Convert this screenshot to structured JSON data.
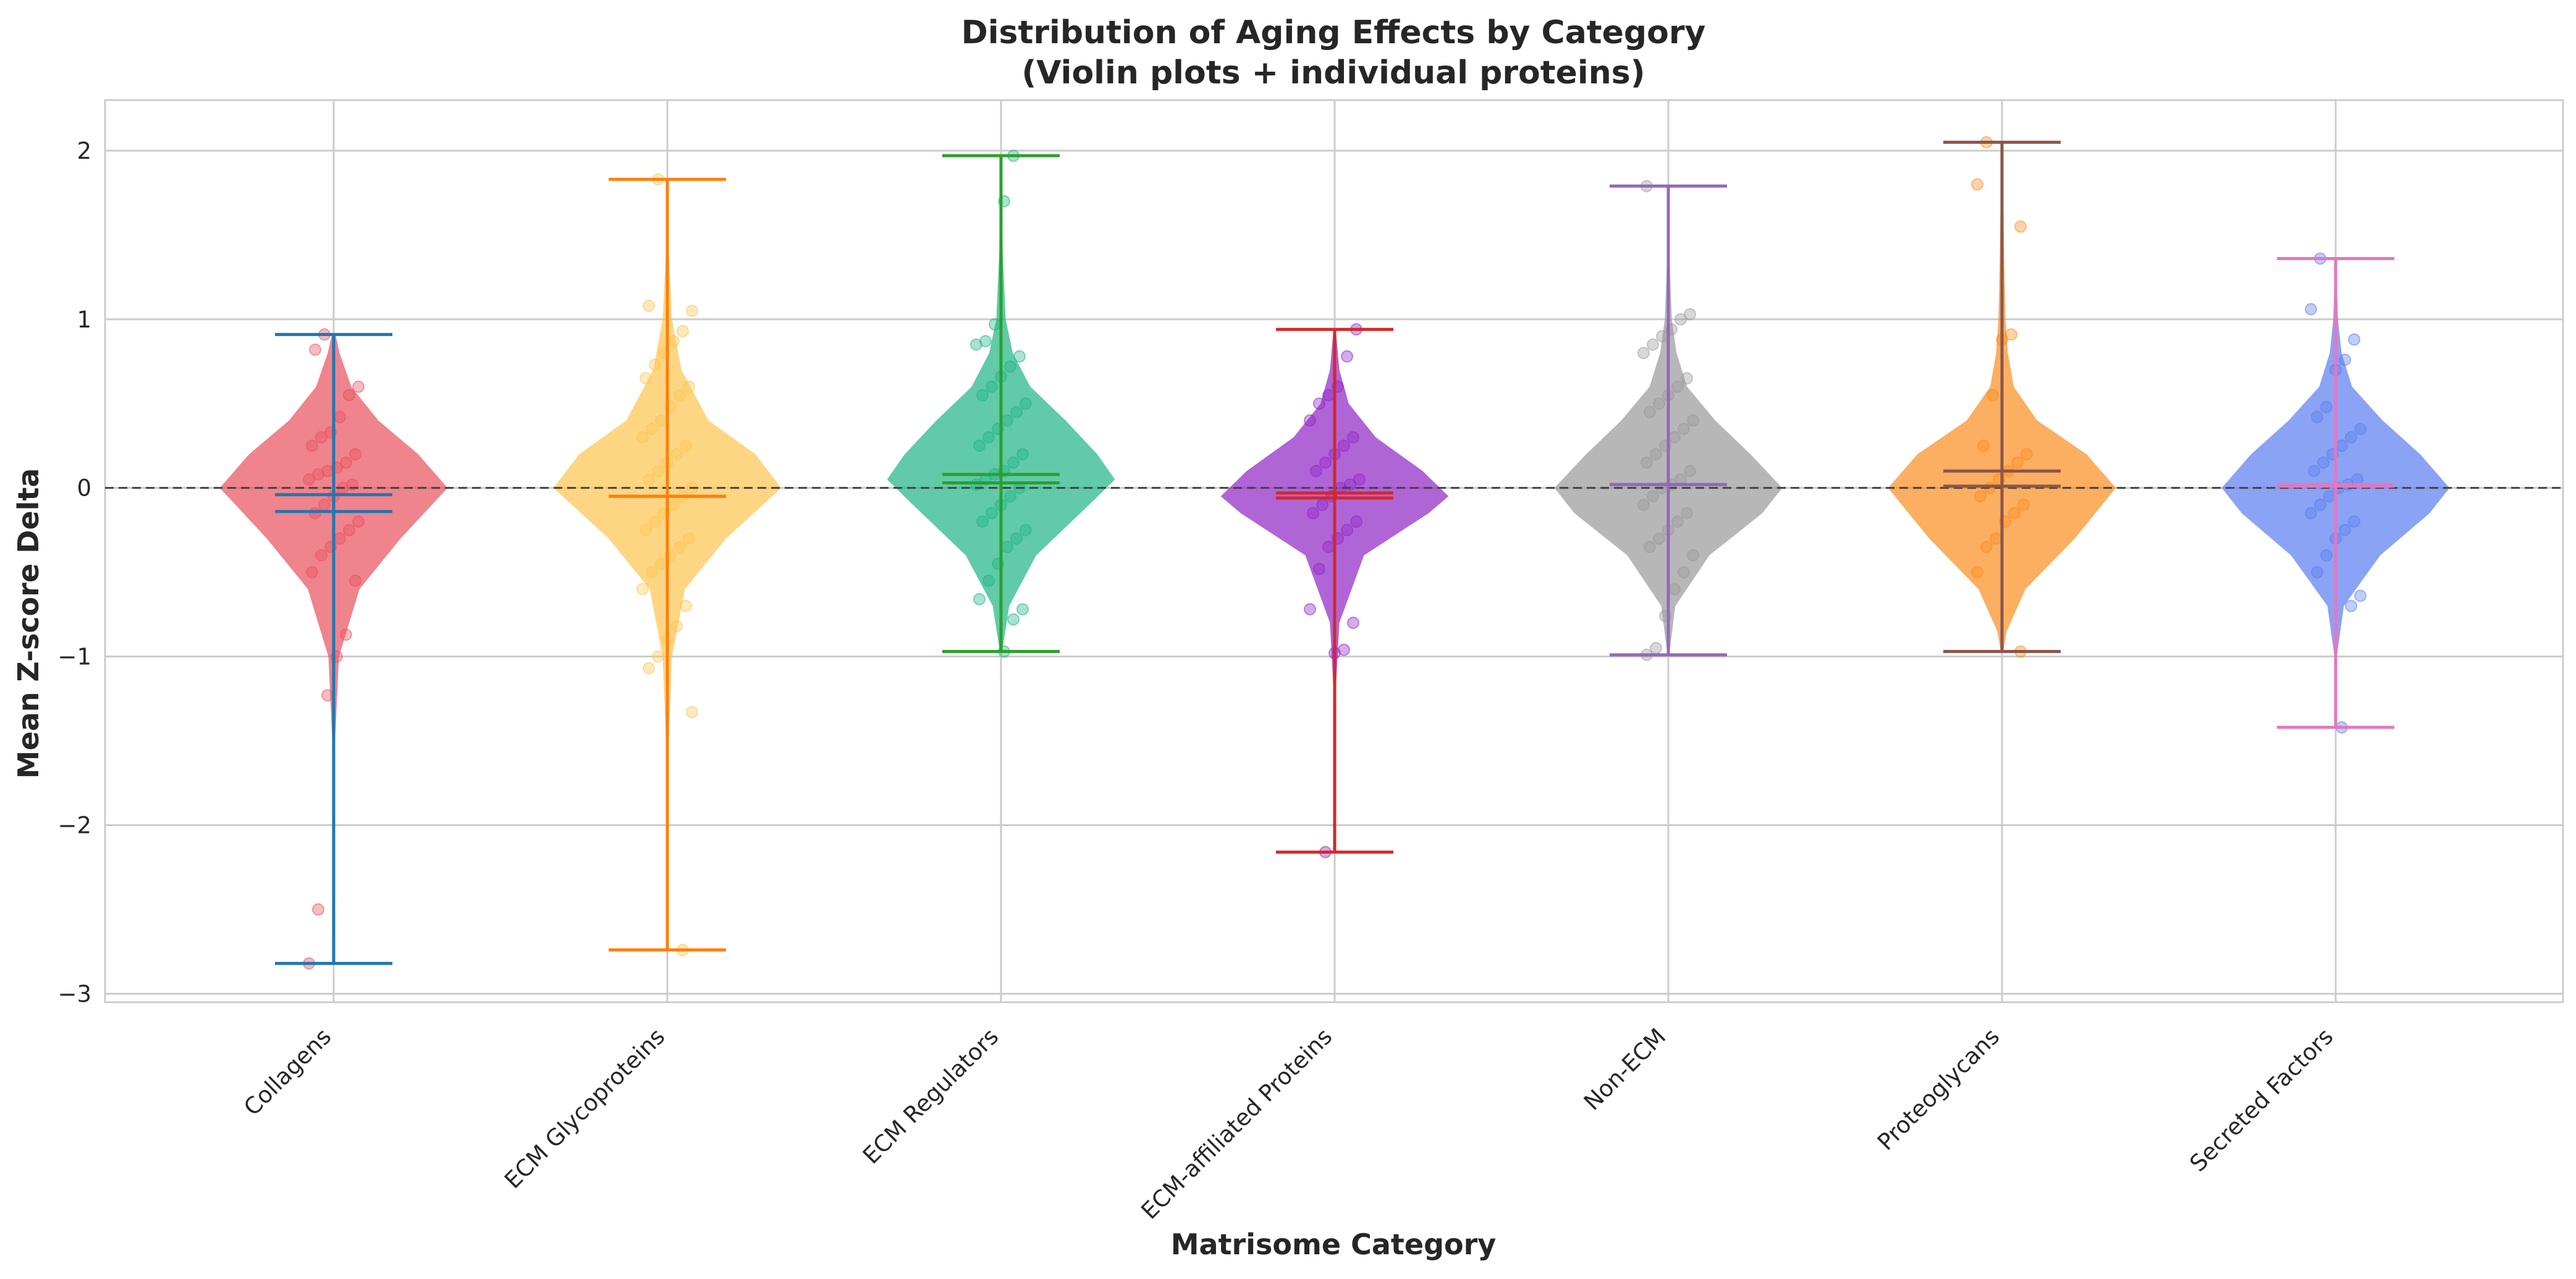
{
  "chart_data": {
    "type": "violin",
    "title": "Distribution of Aging Effects by Category",
    "subtitle": "(Violin plots + individual proteins)",
    "xlabel": "Matrisome Category",
    "ylabel": "Mean Z-score Delta",
    "ylim": [
      -3.05,
      2.3
    ],
    "yticks": [
      -3,
      -2,
      -1,
      0,
      1,
      2
    ],
    "ytick_labels": [
      "−3",
      "−2",
      "−1",
      "0",
      "1",
      "2"
    ],
    "grid": true,
    "reference_line": 0,
    "categories": [
      "Collagens",
      "ECM Glycoproteins",
      "ECM Regulators",
      "ECM-affiliated Proteins",
      "Non-ECM",
      "Proteoglycans",
      "Secreted Factors"
    ],
    "series": [
      {
        "category": "Collagens",
        "fill": "#e8505b",
        "line": "#1f77b4",
        "min": -2.82,
        "max": 0.91,
        "mean": -0.04,
        "median": -0.14,
        "shape": [
          [
            -2.82,
            0.003
          ],
          [
            -2.5,
            0.004
          ],
          [
            -2.0,
            0.006
          ],
          [
            -1.5,
            0.012
          ],
          [
            -1.0,
            0.045
          ],
          [
            -0.6,
            0.22
          ],
          [
            -0.3,
            0.57
          ],
          [
            0,
            0.97
          ],
          [
            0.2,
            0.72
          ],
          [
            0.4,
            0.38
          ],
          [
            0.6,
            0.15
          ],
          [
            0.8,
            0.05
          ],
          [
            0.91,
            0.015
          ]
        ],
        "points": [
          -2.82,
          -2.5,
          -1.23,
          -1.0,
          -0.87,
          -0.55,
          -0.5,
          -0.4,
          -0.35,
          -0.3,
          -0.25,
          -0.2,
          -0.15,
          -0.1,
          -0.05,
          0,
          0.02,
          0.05,
          0.08,
          0.1,
          0.12,
          0.15,
          0.2,
          0.25,
          0.3,
          0.33,
          0.42,
          0.55,
          0.6,
          0.82,
          0.91
        ]
      },
      {
        "category": "ECM Glycoproteins",
        "fill": "#fec44f",
        "line": "#ff7f0e",
        "min": -2.74,
        "max": 1.83,
        "mean": -0.05,
        "median": -0.05,
        "shape": [
          [
            -2.74,
            0.003
          ],
          [
            -2.0,
            0.005
          ],
          [
            -1.5,
            0.012
          ],
          [
            -1.0,
            0.04
          ],
          [
            -0.6,
            0.15
          ],
          [
            -0.3,
            0.5
          ],
          [
            0,
            0.97
          ],
          [
            0.2,
            0.75
          ],
          [
            0.4,
            0.35
          ],
          [
            0.7,
            0.12
          ],
          [
            1.0,
            0.04
          ],
          [
            1.4,
            0.012
          ],
          [
            1.83,
            0.004
          ]
        ],
        "points": [
          -2.74,
          -1.33,
          -1.07,
          -1.0,
          -0.9,
          -0.82,
          -0.7,
          -0.6,
          -0.5,
          -0.45,
          -0.4,
          -0.35,
          -0.3,
          -0.25,
          -0.2,
          -0.15,
          -0.1,
          -0.05,
          0,
          0.05,
          0.1,
          0.15,
          0.2,
          0.25,
          0.3,
          0.35,
          0.4,
          0.48,
          0.55,
          0.6,
          0.65,
          0.73,
          0.8,
          0.87,
          0.93,
          1.05,
          1.08,
          1.83
        ]
      },
      {
        "category": "ECM Regulators",
        "fill": "#1db385",
        "line": "#2ca02c",
        "min": -0.97,
        "max": 1.97,
        "mean": 0.08,
        "median": 0.03,
        "shape": [
          [
            -0.97,
            0.01
          ],
          [
            -0.7,
            0.07
          ],
          [
            -0.4,
            0.3
          ],
          [
            -0.1,
            0.75
          ],
          [
            0.05,
            0.97
          ],
          [
            0.2,
            0.82
          ],
          [
            0.4,
            0.55
          ],
          [
            0.6,
            0.25
          ],
          [
            0.8,
            0.1
          ],
          [
            1.0,
            0.04
          ],
          [
            1.4,
            0.015
          ],
          [
            1.97,
            0.004
          ]
        ],
        "points": [
          -0.97,
          -0.78,
          -0.72,
          -0.66,
          -0.55,
          -0.45,
          -0.35,
          -0.3,
          -0.25,
          -0.2,
          -0.15,
          -0.1,
          -0.05,
          0,
          0.02,
          0.05,
          0.08,
          0.1,
          0.15,
          0.2,
          0.25,
          0.3,
          0.35,
          0.4,
          0.45,
          0.5,
          0.55,
          0.6,
          0.66,
          0.72,
          0.78,
          0.85,
          0.87,
          0.97,
          1.7,
          1.97
        ]
      },
      {
        "category": "ECM-affiliated Proteins",
        "fill": "#8e24c6",
        "line": "#d62728",
        "min": -2.16,
        "max": 0.94,
        "mean": -0.03,
        "median": -0.06,
        "shape": [
          [
            -2.16,
            0.003
          ],
          [
            -1.8,
            0.004
          ],
          [
            -1.2,
            0.01
          ],
          [
            -0.8,
            0.04
          ],
          [
            -0.4,
            0.25
          ],
          [
            -0.15,
            0.8
          ],
          [
            -0.05,
            0.97
          ],
          [
            0.1,
            0.75
          ],
          [
            0.3,
            0.35
          ],
          [
            0.5,
            0.12
          ],
          [
            0.7,
            0.04
          ],
          [
            0.94,
            0.01
          ]
        ],
        "points": [
          -2.16,
          -0.98,
          -0.96,
          -0.8,
          -0.72,
          -0.48,
          -0.35,
          -0.3,
          -0.25,
          -0.2,
          -0.15,
          -0.1,
          -0.05,
          0,
          0.02,
          0.05,
          0.1,
          0.15,
          0.2,
          0.25,
          0.3,
          0.4,
          0.5,
          0.55,
          0.6,
          0.78,
          0.94
        ]
      },
      {
        "category": "Non-ECM",
        "fill": "#999999",
        "line": "#9467bd",
        "min": -0.99,
        "max": 1.79,
        "mean": 0.02,
        "median": 0.02,
        "shape": [
          [
            -0.99,
            0.008
          ],
          [
            -0.7,
            0.06
          ],
          [
            -0.4,
            0.35
          ],
          [
            -0.15,
            0.8
          ],
          [
            0,
            0.97
          ],
          [
            0.2,
            0.7
          ],
          [
            0.4,
            0.4
          ],
          [
            0.6,
            0.16
          ],
          [
            0.8,
            0.07
          ],
          [
            1.0,
            0.03
          ],
          [
            1.4,
            0.008
          ],
          [
            1.79,
            0.003
          ]
        ],
        "points": [
          -0.99,
          -0.95,
          -0.76,
          -0.6,
          -0.5,
          -0.4,
          -0.35,
          -0.3,
          -0.25,
          -0.2,
          -0.15,
          -0.1,
          -0.05,
          0,
          0.02,
          0.05,
          0.1,
          0.15,
          0.2,
          0.25,
          0.3,
          0.35,
          0.4,
          0.45,
          0.5,
          0.55,
          0.6,
          0.65,
          0.8,
          0.85,
          0.9,
          0.94,
          1.0,
          1.03,
          1.79
        ]
      },
      {
        "category": "Proteoglycans",
        "fill": "#fb8c1e",
        "line": "#8c564b",
        "min": -0.97,
        "max": 2.05,
        "mean": 0.1,
        "median": 0.01,
        "shape": [
          [
            -0.97,
            0.01
          ],
          [
            -0.85,
            0.04
          ],
          [
            -0.6,
            0.2
          ],
          [
            -0.3,
            0.62
          ],
          [
            0,
            0.97
          ],
          [
            0.2,
            0.72
          ],
          [
            0.4,
            0.3
          ],
          [
            0.6,
            0.1
          ],
          [
            0.8,
            0.05
          ],
          [
            1.0,
            0.03
          ],
          [
            1.4,
            0.018
          ],
          [
            1.8,
            0.01
          ],
          [
            2.05,
            0.004
          ]
        ],
        "points": [
          -0.97,
          -0.5,
          -0.35,
          -0.3,
          -0.2,
          -0.15,
          -0.1,
          -0.05,
          0,
          0.05,
          0.1,
          0.15,
          0.2,
          0.25,
          0.55,
          0.88,
          0.91,
          1.55,
          1.8,
          2.05
        ]
      },
      {
        "category": "Secreted Factors",
        "fill": "#5a7cf0",
        "line": "#e377c2",
        "min": -1.42,
        "max": 1.36,
        "mean": 0.01,
        "median": 0.02,
        "shape": [
          [
            -1.42,
            0.003
          ],
          [
            -1.0,
            0.01
          ],
          [
            -0.7,
            0.07
          ],
          [
            -0.4,
            0.38
          ],
          [
            -0.15,
            0.8
          ],
          [
            0,
            0.97
          ],
          [
            0.2,
            0.72
          ],
          [
            0.4,
            0.4
          ],
          [
            0.6,
            0.14
          ],
          [
            0.8,
            0.05
          ],
          [
            1.0,
            0.02
          ],
          [
            1.36,
            0.004
          ]
        ],
        "points": [
          -1.42,
          -0.7,
          -0.64,
          -0.5,
          -0.4,
          -0.3,
          -0.25,
          -0.2,
          -0.15,
          -0.1,
          -0.05,
          0,
          0.02,
          0.05,
          0.1,
          0.15,
          0.2,
          0.25,
          0.3,
          0.35,
          0.42,
          0.48,
          0.7,
          0.76,
          0.88,
          1.06,
          1.36
        ]
      }
    ]
  }
}
